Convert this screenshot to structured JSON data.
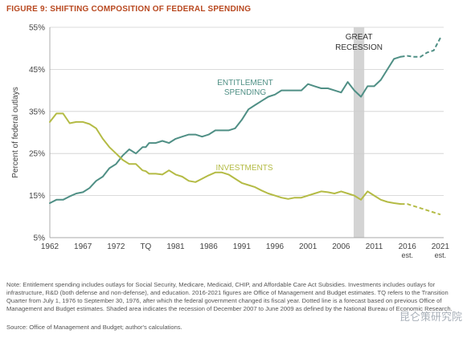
{
  "figure_title": "FIGURE 9: SHIFTING COMPOSITION OF FEDERAL SPENDING",
  "note": "Note: Entitlement spending includes outlays for Social Security, Medicare, Medicaid, CHIP, and Affordable Care Act Subsidies. Investments includes outlays for infrastructure, R&D (both defense and non-defense), and education. 2016-2021 figures are Office of Management and Budget estimates. TQ refers to the Transition Quarter from July 1, 1976 to September 30, 1976, after which the federal government changed its fiscal year. Dotted line is a forecast based on previous Office of Management and Budget estimates. Shaded area indicates the recession of December 2007 to June 2009 as defined by the National Bureau of Economic Research.",
  "source": "Source: Office of Management and Budget; author's calculations.",
  "watermark": "昆仑策研究院",
  "chart_data": {
    "type": "line",
    "ylabel": "Percent of federal outlays",
    "ylim": [
      5,
      55
    ],
    "yticks": [
      "5%",
      "15%",
      "25%",
      "35%",
      "45%",
      "55%"
    ],
    "ytick_values": [
      5,
      15,
      25,
      35,
      45,
      55
    ],
    "xlim": [
      1962,
      2021.5
    ],
    "xticks": [
      {
        "value": 1962,
        "label": "1962",
        "sub": ""
      },
      {
        "value": 1967,
        "label": "1967",
        "sub": ""
      },
      {
        "value": 1972,
        "label": "1972",
        "sub": ""
      },
      {
        "value": 1976.5,
        "label": "TQ",
        "sub": ""
      },
      {
        "value": 1981,
        "label": "1981",
        "sub": ""
      },
      {
        "value": 1986,
        "label": "1986",
        "sub": ""
      },
      {
        "value": 1991,
        "label": "1991",
        "sub": ""
      },
      {
        "value": 1996,
        "label": "1996",
        "sub": ""
      },
      {
        "value": 2001,
        "label": "2001",
        "sub": ""
      },
      {
        "value": 2006,
        "label": "2006",
        "sub": ""
      },
      {
        "value": 2011,
        "label": "2011",
        "sub": ""
      },
      {
        "value": 2016,
        "label": "2016",
        "sub": "est."
      },
      {
        "value": 2021,
        "label": "2021",
        "sub": "est."
      }
    ],
    "recession": {
      "start": 2007.9,
      "end": 2009.5,
      "label_lines": [
        "GREAT",
        "RECESSION"
      ]
    },
    "grid": true,
    "series": [
      {
        "name": "ENTITLEMENT SPENDING",
        "label_lines": [
          "ENTITLEMENT",
          "SPENDING"
        ],
        "color": "#4f8f85",
        "x": [
          1962,
          1963,
          1964,
          1965,
          1966,
          1967,
          1968,
          1969,
          1970,
          1971,
          1972,
          1973,
          1974,
          1975,
          1976,
          1976.5,
          1977,
          1978,
          1979,
          1980,
          1981,
          1982,
          1983,
          1984,
          1985,
          1986,
          1987,
          1988,
          1989,
          1990,
          1991,
          1992,
          1993,
          1994,
          1995,
          1996,
          1997,
          1998,
          1999,
          2000,
          2001,
          2002,
          2003,
          2004,
          2005,
          2006,
          2007,
          2008,
          2009,
          2010,
          2011,
          2012,
          2013,
          2014,
          2015
        ],
        "y": [
          13.2,
          14.0,
          14.0,
          14.8,
          15.5,
          15.8,
          16.8,
          18.5,
          19.5,
          21.5,
          22.5,
          24.5,
          26.0,
          25.0,
          26.5,
          26.5,
          27.5,
          27.5,
          28.0,
          27.5,
          28.5,
          29.0,
          29.5,
          29.5,
          29.0,
          29.5,
          30.5,
          30.5,
          30.5,
          31.0,
          33.0,
          35.5,
          36.5,
          37.5,
          38.5,
          39.0,
          40.0,
          40.0,
          40.0,
          40.0,
          41.5,
          41.0,
          40.5,
          40.5,
          40.0,
          39.5,
          42.0,
          40.0,
          38.5,
          41.0,
          41.0,
          42.5,
          45.0,
          47.5,
          48.0
        ],
        "forecast_x": [
          2015,
          2016,
          2017,
          2018,
          2019,
          2020,
          2021
        ],
        "forecast_y": [
          48.0,
          48.2,
          48.0,
          48.0,
          49.0,
          49.5,
          52.5
        ]
      },
      {
        "name": "INVESTMENTS",
        "label_lines": [
          "INVESTMENTS"
        ],
        "color": "#b4bb45",
        "x": [
          1962,
          1963,
          1964,
          1965,
          1966,
          1967,
          1968,
          1969,
          1970,
          1971,
          1972,
          1973,
          1974,
          1975,
          1976,
          1976.5,
          1977,
          1978,
          1979,
          1980,
          1981,
          1982,
          1983,
          1984,
          1985,
          1986,
          1987,
          1988,
          1989,
          1990,
          1991,
          1992,
          1993,
          1994,
          1995,
          1996,
          1997,
          1998,
          1999,
          2000,
          2001,
          2002,
          2003,
          2004,
          2005,
          2006,
          2007,
          2008,
          2009,
          2010,
          2011,
          2012,
          2013,
          2014,
          2015
        ],
        "y": [
          32.5,
          34.5,
          34.5,
          32.2,
          32.5,
          32.5,
          32.0,
          31.0,
          28.5,
          26.5,
          25.0,
          23.5,
          22.5,
          22.5,
          21.0,
          20.8,
          20.2,
          20.2,
          20.0,
          21.0,
          20.0,
          19.5,
          18.5,
          18.2,
          19.0,
          19.8,
          20.5,
          20.5,
          20.0,
          19.0,
          18.0,
          17.5,
          17.0,
          16.2,
          15.5,
          15.0,
          14.5,
          14.2,
          14.5,
          14.5,
          15.0,
          15.5,
          16.0,
          15.8,
          15.5,
          16.0,
          15.5,
          15.0,
          14.0,
          16.0,
          15.0,
          14.0,
          13.5,
          13.2,
          13.0
        ],
        "forecast_x": [
          2015,
          2016,
          2017,
          2018,
          2019,
          2020,
          2021
        ],
        "forecast_y": [
          13.0,
          13.0,
          12.5,
          12.0,
          11.5,
          11.0,
          10.5
        ]
      }
    ]
  }
}
